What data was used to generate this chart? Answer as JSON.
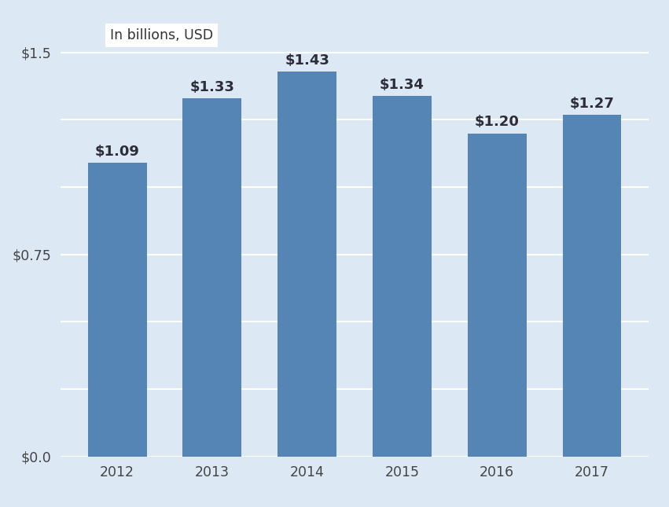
{
  "categories": [
    "2012",
    "2013",
    "2014",
    "2015",
    "2016",
    "2017"
  ],
  "values": [
    1.09,
    1.33,
    1.43,
    1.34,
    1.2,
    1.27
  ],
  "labels": [
    "$1.09",
    "$1.33",
    "$1.43",
    "$1.34",
    "$1.20",
    "$1.27"
  ],
  "bar_color": "#5585b5",
  "background_color": "#dce9f5",
  "ylabel_text": "In billions, USD",
  "yticks": [
    0.0,
    0.25,
    0.5,
    0.75,
    1.0,
    1.25,
    1.5
  ],
  "ylim": [
    0,
    1.62
  ],
  "grid_color": "#ffffff",
  "label_fontsize": 13,
  "tick_fontsize": 12.5,
  "annotation_color": "#2d2d3a",
  "bar_width": 0.62
}
